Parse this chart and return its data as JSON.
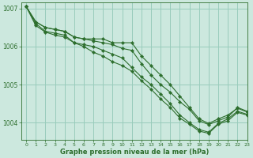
{
  "bg_color": "#cce8de",
  "grid_color": "#99ccbb",
  "line_color": "#2d6e2d",
  "text_color": "#2d6e2d",
  "xlabel": "Graphe pression niveau de la mer (hPa)",
  "xlim": [
    -0.5,
    23
  ],
  "ylim": [
    1003.55,
    1007.15
  ],
  "yticks": [
    1004,
    1005,
    1006,
    1007
  ],
  "xticks": [
    0,
    1,
    2,
    3,
    4,
    5,
    6,
    7,
    8,
    9,
    10,
    11,
    12,
    13,
    14,
    15,
    16,
    17,
    18,
    19,
    20,
    21,
    22,
    23
  ],
  "series": [
    [
      1007.05,
      1006.65,
      1006.5,
      1006.45,
      1006.4,
      1006.25,
      1006.2,
      1006.15,
      1006.1,
      1006.05,
      1005.95,
      1005.9,
      1005.55,
      1005.25,
      1005.0,
      1004.8,
      1004.55,
      1004.35,
      1004.05,
      1003.95,
      1004.05,
      1004.15,
      1004.4,
      1004.3
    ],
    [
      1007.05,
      1006.65,
      1006.5,
      1006.45,
      1006.4,
      1006.25,
      1006.2,
      1006.2,
      1006.2,
      1006.1,
      1006.1,
      1006.1,
      1005.75,
      1005.5,
      1005.25,
      1005.0,
      1004.7,
      1004.4,
      1004.1,
      1003.98,
      1004.1,
      1004.2,
      1004.38,
      1004.28
    ],
    [
      1007.05,
      1006.6,
      1006.4,
      1006.35,
      1006.3,
      1006.1,
      1006.05,
      1006.0,
      1005.9,
      1005.8,
      1005.7,
      1005.45,
      1005.2,
      1005.0,
      1004.75,
      1004.5,
      1004.2,
      1004.0,
      1003.82,
      1003.75,
      1003.98,
      1004.1,
      1004.3,
      1004.22
    ],
    [
      1007.05,
      1006.55,
      1006.38,
      1006.3,
      1006.25,
      1006.1,
      1006.0,
      1005.85,
      1005.75,
      1005.6,
      1005.5,
      1005.35,
      1005.1,
      1004.88,
      1004.62,
      1004.4,
      1004.12,
      1003.96,
      1003.78,
      1003.72,
      1003.96,
      1004.05,
      1004.27,
      1004.2
    ]
  ]
}
